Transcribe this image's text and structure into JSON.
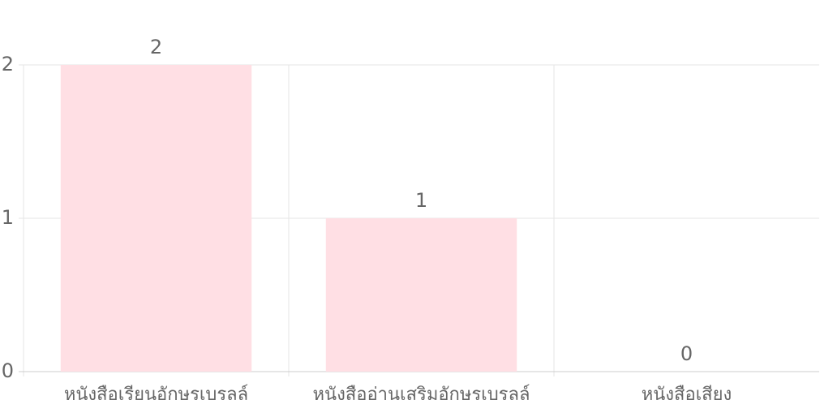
{
  "chart_data": {
    "type": "bar",
    "categories": [
      "หนังสือเรียนอักษรเบรลล์",
      "หนังสืออ่านเสริมอักษรเบรลล์",
      "หนังสือเสียง"
    ],
    "values": [
      2,
      1,
      0
    ],
    "data_labels": [
      "2",
      "1",
      "0"
    ],
    "y_ticks": [
      "0",
      "1",
      "2"
    ],
    "ylim": [
      0,
      2
    ],
    "grid": true,
    "legend": "none",
    "colors": {
      "bar_fill": "#ffdfe4",
      "grid": "#e6e6e6",
      "axis": "#cccccc",
      "text": "#666666"
    }
  }
}
